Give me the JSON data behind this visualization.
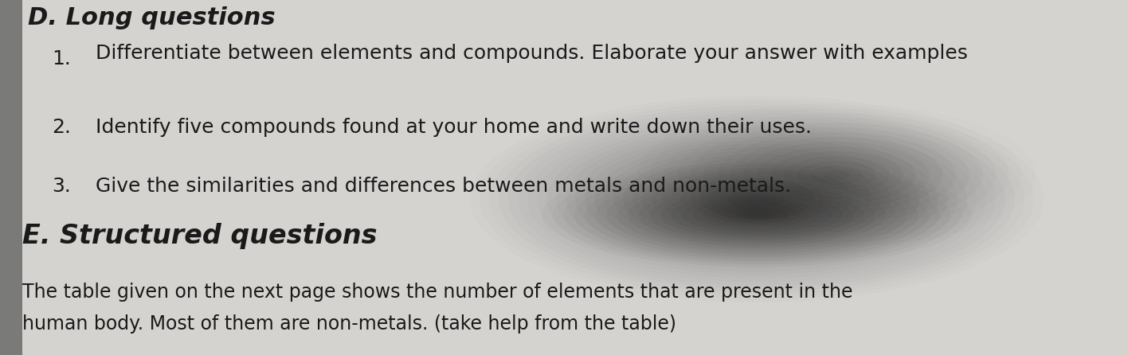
{
  "bg_color": "#b0b0b0",
  "page_color_left": "#d0cfcc",
  "page_color_right": "#d8d7d4",
  "text_color": "#1a1a1a",
  "title_D": "D. Long questions",
  "title_E": "E. Structured questions",
  "item1_num": "1.",
  "item1_text": "Differentiate between elements and compounds. Elaborate your answer with examples",
  "item2_num": "2.",
  "item2_text": "Identify five compounds found at your home and write down their uses.",
  "item3_num": "3.",
  "item3_text": "Give the similarities and differences between metals and non-metals.",
  "para_line1": "The table given on the next page shows the number of elements that are present in the",
  "para_line2": "human body. Most of them are non-metals. (take help from the table)",
  "figsize": [
    14.16,
    4.46
  ],
  "dpi": 100
}
